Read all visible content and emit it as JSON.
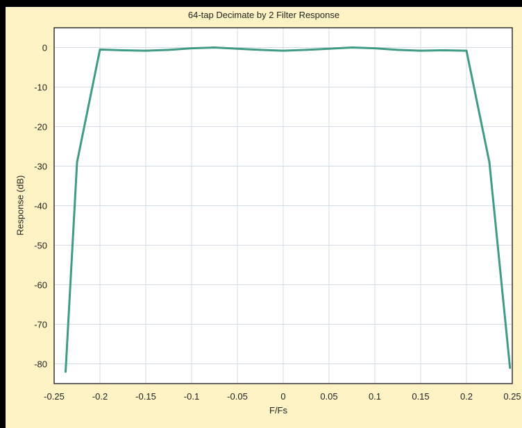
{
  "colors": {
    "frame_background": "#fdf3c5",
    "plot_background": "#ffffff",
    "grid": "#d3dce4",
    "axis": "#333333",
    "series": "#3f9a86"
  },
  "chart_data": {
    "type": "line",
    "title": "64-tap Decimate by 2 Filter Response",
    "xlabel": "F/Fs",
    "ylabel": "Response (dB)",
    "xlim": [
      -0.25,
      0.25
    ],
    "ylim": [
      -85,
      5
    ],
    "grid": true,
    "x_ticks": [
      -0.25,
      -0.2,
      -0.15,
      -0.1,
      -0.05,
      0,
      0.05,
      0.1,
      0.15,
      0.2,
      0.25
    ],
    "x_tick_labels": [
      "-0.25",
      "-0.2",
      "-0.15",
      "-0.1",
      "-0.05",
      "0",
      "0.05",
      "0.1",
      "0.15",
      "0.2",
      "0.25"
    ],
    "y_ticks": [
      0,
      -10,
      -20,
      -30,
      -40,
      -50,
      -60,
      -70,
      -80
    ],
    "y_tick_labels": [
      "0",
      "-10",
      "-20",
      "-30",
      "-40",
      "-50",
      "-60",
      "-70",
      "-80"
    ],
    "series": [
      {
        "x": [
          -0.2375,
          -0.225,
          -0.2,
          -0.175,
          -0.15,
          -0.125,
          -0.1,
          -0.075,
          -0.05,
          -0.025,
          0,
          0.025,
          0.05,
          0.075,
          0.1,
          0.125,
          0.15,
          0.175,
          0.2,
          0.225,
          0.2475
        ],
        "y": [
          -82,
          -29,
          -0.5,
          -0.7,
          -0.8,
          -0.6,
          -0.2,
          0,
          -0.3,
          -0.6,
          -0.8,
          -0.6,
          -0.3,
          0,
          -0.2,
          -0.6,
          -0.8,
          -0.7,
          -0.8,
          -29,
          -81
        ]
      }
    ]
  }
}
